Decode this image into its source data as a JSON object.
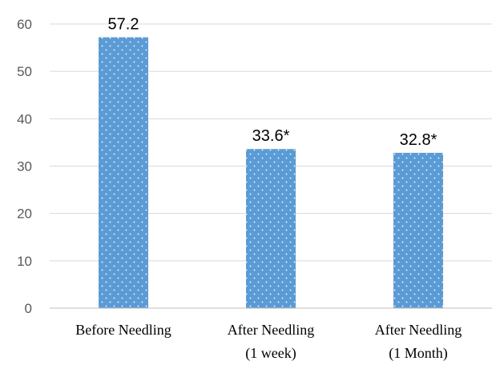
{
  "chart_data": {
    "type": "bar",
    "title": "",
    "xlabel": "",
    "ylabel": "",
    "categories": [
      [
        "Before Needling"
      ],
      [
        "After Needling",
        "(1 week)"
      ],
      [
        "After Needling",
        "(1 Month)"
      ]
    ],
    "values": [
      57.2,
      33.6,
      32.8
    ],
    "data_labels": [
      "57.2",
      "33.6*",
      "32.8*"
    ],
    "ylim": [
      0,
      60
    ],
    "yticks": [
      0,
      10,
      20,
      30,
      40,
      50,
      60
    ],
    "grid": true,
    "legend": "none",
    "bar_color": "#5b9bd5",
    "bar_pattern": "white-dots"
  }
}
